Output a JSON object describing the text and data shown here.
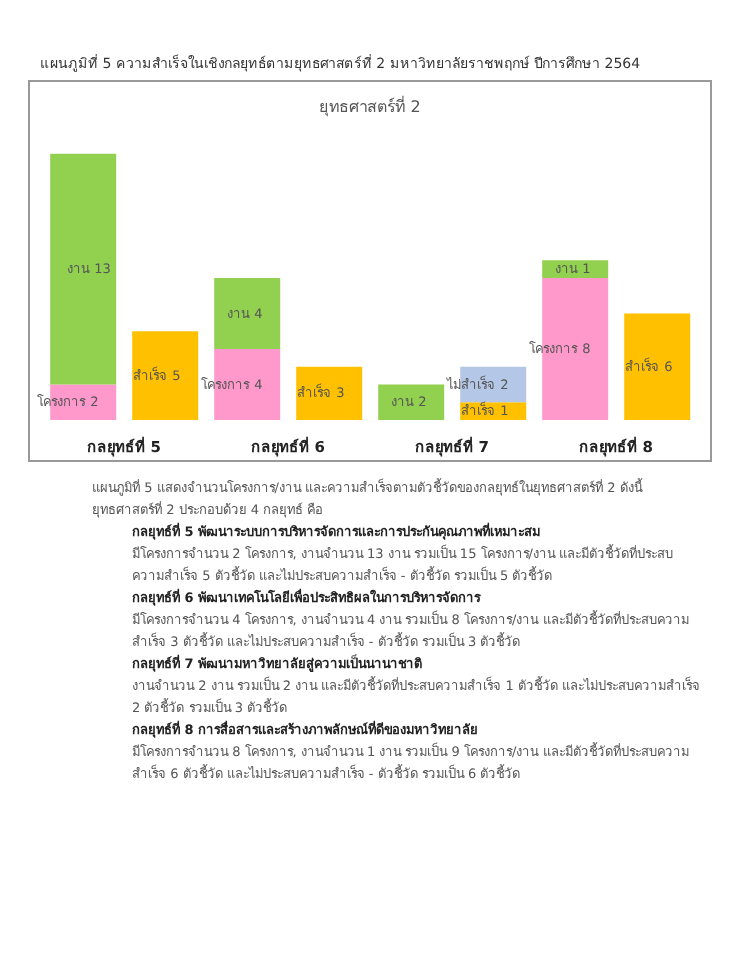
{
  "chart_data": {
    "type": "bar",
    "title": "แผนภูมิที่ 5 ความสำเร็จในเชิงกลยุทธ์ตามยุทธศาสตร์ที่ 2 มหาวิทยาลัยราชพฤกษ์ ปีการศึกษา 2564",
    "subtitle": "ยุทธศาสตร์ที่ 2",
    "categories": [
      "กลยุทธ์ที่ 5",
      null,
      "กลยุทธ์ที่ 6",
      null,
      "กลยุทธ์ที่ 7",
      null,
      "กลยุทธ์ที่ 8",
      null
    ],
    "stacked": true,
    "data_labels": true,
    "legend": false,
    "grid": false,
    "tick_labels": "x",
    "series": [
      {
        "name": "โครงการ",
        "color": "#ff99cc",
        "values": [
          2,
          null,
          4,
          null,
          null,
          null,
          8,
          null
        ]
      },
      {
        "name": "งาน",
        "color": "#92d050",
        "values": [
          13,
          null,
          4,
          null,
          2,
          null,
          1,
          null
        ]
      },
      {
        "name": "สำเร็จ",
        "color": "#ffc000",
        "values": [
          null,
          5,
          null,
          3,
          null,
          1,
          null,
          6
        ]
      },
      {
        "name": "ไม่สำเร็จ",
        "color": "#b4c7e7",
        "values": [
          null,
          null,
          null,
          null,
          null,
          2,
          null,
          null
        ]
      }
    ],
    "annotations": [
      "แผนภูมิที่ 5 แสดงจำนวนโครงการ/งาน และความสำเร็จตามตัวชี้วัดของกลยุทธ์ในยุทธศาสตร์ที่ 2 ดังนี้",
      "ยุทธศาสตร์ที่ 2 ประกอบด้วย 4 กลยุทธ์ คือ",
      "กลยุทธ์ที่ 5 พัฒนาระบบการบริหารจัดการและการประกันคุณภาพที่เหมาะสม",
      "มีโครงการจำนวน 2 โครงการ, งานจำนวน 13 งาน รวมเป็น 15 โครงการ/งาน และมีตัวชี้วัดที่ประสบความสำเร็จ 5 ตัวชี้วัด และไม่ประสบความสำเร็จ - ตัวชี้วัด รวมเป็น 5 ตัวชี้วัด",
      "กลยุทธ์ที่ 6 พัฒนาเทคโนโลยีเพื่อประสิทธิผลในการบริหารจัดการ",
      "มีโครงการจำนวน 4 โครงการ, งานจำนวน 4 งาน รวมเป็น 8 โครงการ/งาน และมีตัวชี้วัดที่ประสบความสำเร็จ 3 ตัวชี้วัด และไม่ประสบความสำเร็จ - ตัวชี้วัด รวมเป็น 3 ตัวชี้วัด",
      "กลยุทธ์ที่ 7 พัฒนามหาวิทยาลัยสู่ความเป็นนานาชาติ",
      "งานจำนวน 2 งาน รวมเป็น 2 งาน และมีตัวชี้วัดที่ประสบความสำเร็จ 1 ตัวชี้วัด และไม่ประสบความสำเร็จ 2 ตัวชี้วัด รวมเป็น 3 ตัวชี้วัด",
      "กลยุทธ์ที่ 8 การสื่อสารและสร้างภาพลักษณ์ที่ดีของมหาวิทยาลัย",
      "มีโครงการจำนวน 8 โครงการ, งานจำนวน 1 งาน รวมเป็น 9 โครงการ/งาน และมีตัวชี้วัดที่ประสบความสำเร็จ 6 ตัวชี้วัด และไม่ประสบความสำเร็จ - ตัวชี้วัด รวมเป็น 6 ตัวชี้วัด"
    ]
  }
}
